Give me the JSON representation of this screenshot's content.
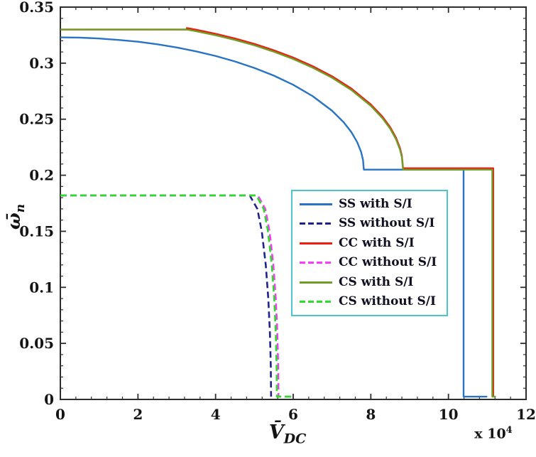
{
  "figure": {
    "background": "#ffffff",
    "axis_color": "#2e2e2e",
    "text_color": "#141414"
  },
  "labels": {
    "ylabel_base": "ω̄",
    "ylabel_sub": "n",
    "xlabel_base": "V̄",
    "xlabel_sub": "DC",
    "multiplier_base": "x 10",
    "multiplier_exp": "4"
  },
  "legend": {
    "border_color": "#4cc5ce"
  },
  "chart_data": {
    "type": "line",
    "title": "",
    "xlabel": "V̄_DC (x 10^4)",
    "ylabel": "ω̄_n",
    "xlim": [
      0,
      12
    ],
    "ylim": [
      0,
      0.35
    ],
    "grid": false,
    "legend_position": "center-right",
    "x_tick_values": [
      0,
      2,
      4,
      6,
      8,
      10,
      12
    ],
    "x_tick_labels": [
      "0",
      "2",
      "4",
      "6",
      "8",
      "10",
      "12"
    ],
    "x_minor_step": 0.4,
    "y_tick_values": [
      0,
      0.05,
      0.1,
      0.15,
      0.2,
      0.25,
      0.3,
      0.35
    ],
    "y_tick_labels": [
      "0",
      "0.05",
      "0.1",
      "0.15",
      "0.2",
      "0.25",
      "0.3",
      "0.35"
    ],
    "y_minor_step": 0.01,
    "series": [
      {
        "id": "ss-with-si",
        "label": "SS with S/I",
        "color": "#2a73c3",
        "style": "solid",
        "points": [
          [
            0,
            0.323
          ],
          [
            0.5,
            0.3228
          ],
          [
            1,
            0.322
          ],
          [
            1.5,
            0.3207
          ],
          [
            2,
            0.3191
          ],
          [
            2.5,
            0.3168
          ],
          [
            3,
            0.314
          ],
          [
            3.5,
            0.3105
          ],
          [
            4,
            0.3064
          ],
          [
            4.5,
            0.3015
          ],
          [
            5,
            0.2957
          ],
          [
            5.5,
            0.2889
          ],
          [
            6,
            0.2807
          ],
          [
            6.5,
            0.2706
          ],
          [
            7,
            0.2576
          ],
          [
            7.3,
            0.2473
          ],
          [
            7.5,
            0.2384
          ],
          [
            7.65,
            0.2294
          ],
          [
            7.75,
            0.2208
          ],
          [
            7.8,
            0.2134
          ],
          [
            7.82,
            0.205
          ],
          [
            10.39,
            0.205
          ],
          [
            10.39,
            0.0025
          ],
          [
            11.0,
            0.0025
          ]
        ]
      },
      {
        "id": "ss-without-si",
        "label": "SS without S/I",
        "color": "#22228e",
        "style": "dashed",
        "points": [
          [
            0,
            0.182
          ],
          [
            4.88,
            0.182
          ],
          [
            5.076,
            0.17
          ],
          [
            5.191,
            0.15
          ],
          [
            5.293,
            0.12
          ],
          [
            5.358,
            0.09
          ],
          [
            5.399,
            0.06
          ],
          [
            5.4225,
            0.03
          ],
          [
            5.43,
            0.0025
          ]
        ]
      },
      {
        "id": "cc-with-si",
        "label": "CC with S/I",
        "color": "#ee1c11",
        "style": "solid",
        "points": [
          [
            0,
            0.33
          ],
          [
            3.26,
            0.33
          ],
          [
            3.26,
            0.3313
          ],
          [
            3.5,
            0.3298
          ],
          [
            4,
            0.3262
          ],
          [
            4.5,
            0.322
          ],
          [
            5,
            0.3172
          ],
          [
            5.5,
            0.3115
          ],
          [
            6,
            0.305
          ],
          [
            6.5,
            0.2973
          ],
          [
            7,
            0.2883
          ],
          [
            7.5,
            0.2773
          ],
          [
            8,
            0.2632
          ],
          [
            8.3,
            0.2522
          ],
          [
            8.5,
            0.2428
          ],
          [
            8.65,
            0.2334
          ],
          [
            8.75,
            0.2244
          ],
          [
            8.8,
            0.2174
          ],
          [
            8.83,
            0.2063
          ],
          [
            11.155,
            0.2063
          ],
          [
            11.155,
            0.0025
          ]
        ]
      },
      {
        "id": "cc-without-si",
        "label": "CC without S/I",
        "color": "#fa3afa",
        "style": "dashed",
        "points": [
          [
            0,
            0.182
          ],
          [
            5.09,
            0.182
          ],
          [
            5.279,
            0.17
          ],
          [
            5.39,
            0.15
          ],
          [
            5.488,
            0.12
          ],
          [
            5.551,
            0.09
          ],
          [
            5.59,
            0.06
          ],
          [
            5.613,
            0.03
          ],
          [
            5.62,
            0.0025
          ],
          [
            6.04,
            0.0025
          ]
        ]
      },
      {
        "id": "cs-with-si",
        "label": "CS with S/I",
        "color": "#6f9e28",
        "style": "solid",
        "points": [
          [
            0,
            0.33
          ],
          [
            3.26,
            0.33
          ],
          [
            3.5,
            0.3285
          ],
          [
            4,
            0.3249
          ],
          [
            4.5,
            0.3207
          ],
          [
            5,
            0.3159
          ],
          [
            5.5,
            0.3102
          ],
          [
            6,
            0.3037
          ],
          [
            6.5,
            0.296
          ],
          [
            7,
            0.287
          ],
          [
            7.5,
            0.276
          ],
          [
            8,
            0.2619
          ],
          [
            8.3,
            0.2509
          ],
          [
            8.5,
            0.2415
          ],
          [
            8.65,
            0.2321
          ],
          [
            8.75,
            0.2231
          ],
          [
            8.8,
            0.2161
          ],
          [
            8.83,
            0.205
          ],
          [
            11.13,
            0.205
          ],
          [
            11.13,
            0.0025
          ],
          [
            11.22,
            0.0025
          ]
        ]
      },
      {
        "id": "cs-without-si",
        "label": "CS without S/I",
        "color": "#2bdc2b",
        "style": "dashed",
        "points": [
          [
            0,
            0.182
          ],
          [
            5.05,
            0.182
          ],
          [
            5.239,
            0.17
          ],
          [
            5.35,
            0.15
          ],
          [
            5.448,
            0.12
          ],
          [
            5.511,
            0.09
          ],
          [
            5.55,
            0.06
          ],
          [
            5.573,
            0.03
          ],
          [
            5.58,
            0.0025
          ],
          [
            5.98,
            0.0025
          ]
        ]
      }
    ]
  }
}
